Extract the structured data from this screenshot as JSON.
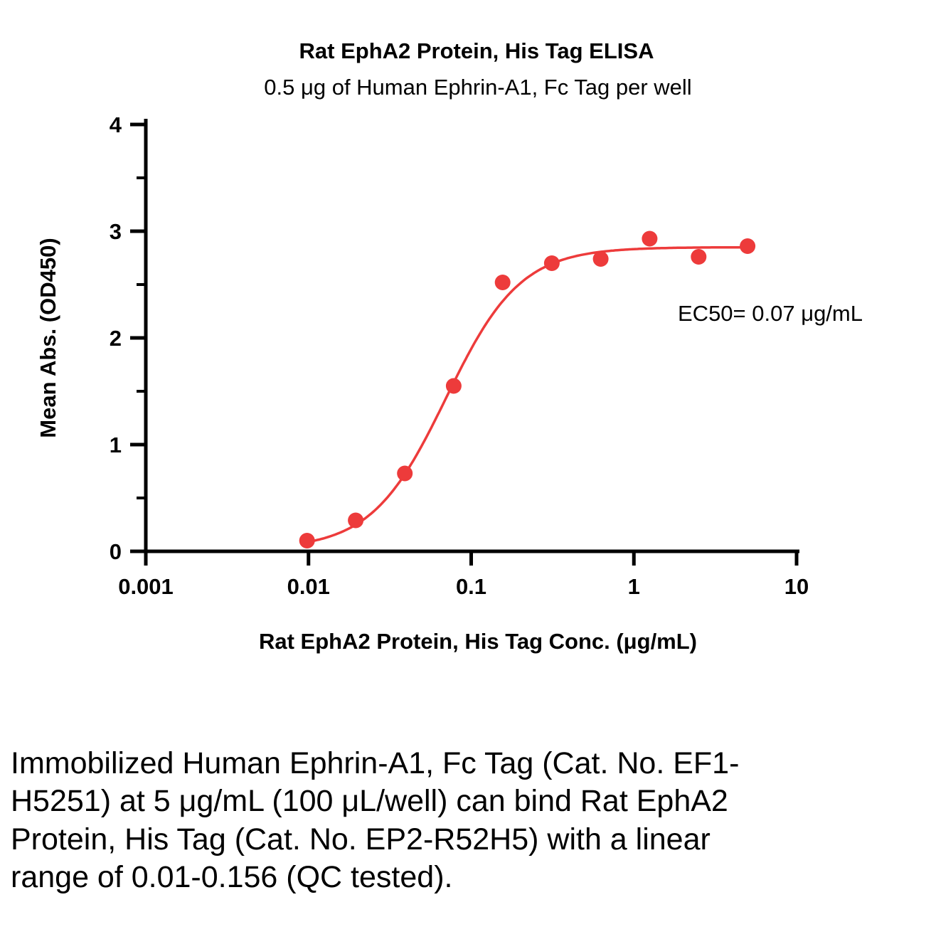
{
  "chart_data": {
    "type": "scatter",
    "title": "Rat EphA2 Protein, His Tag ELISA",
    "subtitle": "0.5 μg of Human Ephrin-A1, Fc Tag per well",
    "xlabel": "Rat EphA2 Protein, His Tag Conc. (μg/mL)",
    "ylabel": "Mean Abs. (OD450)",
    "x_scale": "log10",
    "xlim": [
      0.001,
      10
    ],
    "ylim": [
      0,
      4
    ],
    "x_ticks": [
      0.001,
      0.01,
      0.1,
      1,
      10
    ],
    "x_tick_labels": [
      "0.001",
      "0.01",
      "0.1",
      "1",
      "10"
    ],
    "y_ticks": [
      0,
      1,
      2,
      3,
      4
    ],
    "y_minor_ticks": [
      0.5,
      1.5,
      2.5,
      3.5
    ],
    "points": {
      "x": [
        0.0098,
        0.0195,
        0.0391,
        0.0781,
        0.156,
        0.313,
        0.625,
        1.25,
        2.5,
        5
      ],
      "y": [
        0.1,
        0.29,
        0.73,
        1.55,
        2.52,
        2.7,
        2.74,
        2.93,
        2.76,
        2.86
      ]
    },
    "fit_curve": {
      "model": "4PL",
      "bottom": 0.02,
      "top": 2.85,
      "ec50": 0.07,
      "hill": 1.9
    },
    "annotation": "EC50= 0.07 μg/mL",
    "point_color": "#ED3B3B",
    "line_color": "#ED3B3B",
    "grid": false,
    "legend": "none"
  },
  "caption": "Immobilized Human Ephrin-A1, Fc Tag (Cat. No. EF1-H5251) at 5 μg/mL (100 μL/well) can bind Rat EphA2 Protein, His Tag (Cat. No. EP2-R52H5) with a linear range of 0.01-0.156 (QC tested)."
}
